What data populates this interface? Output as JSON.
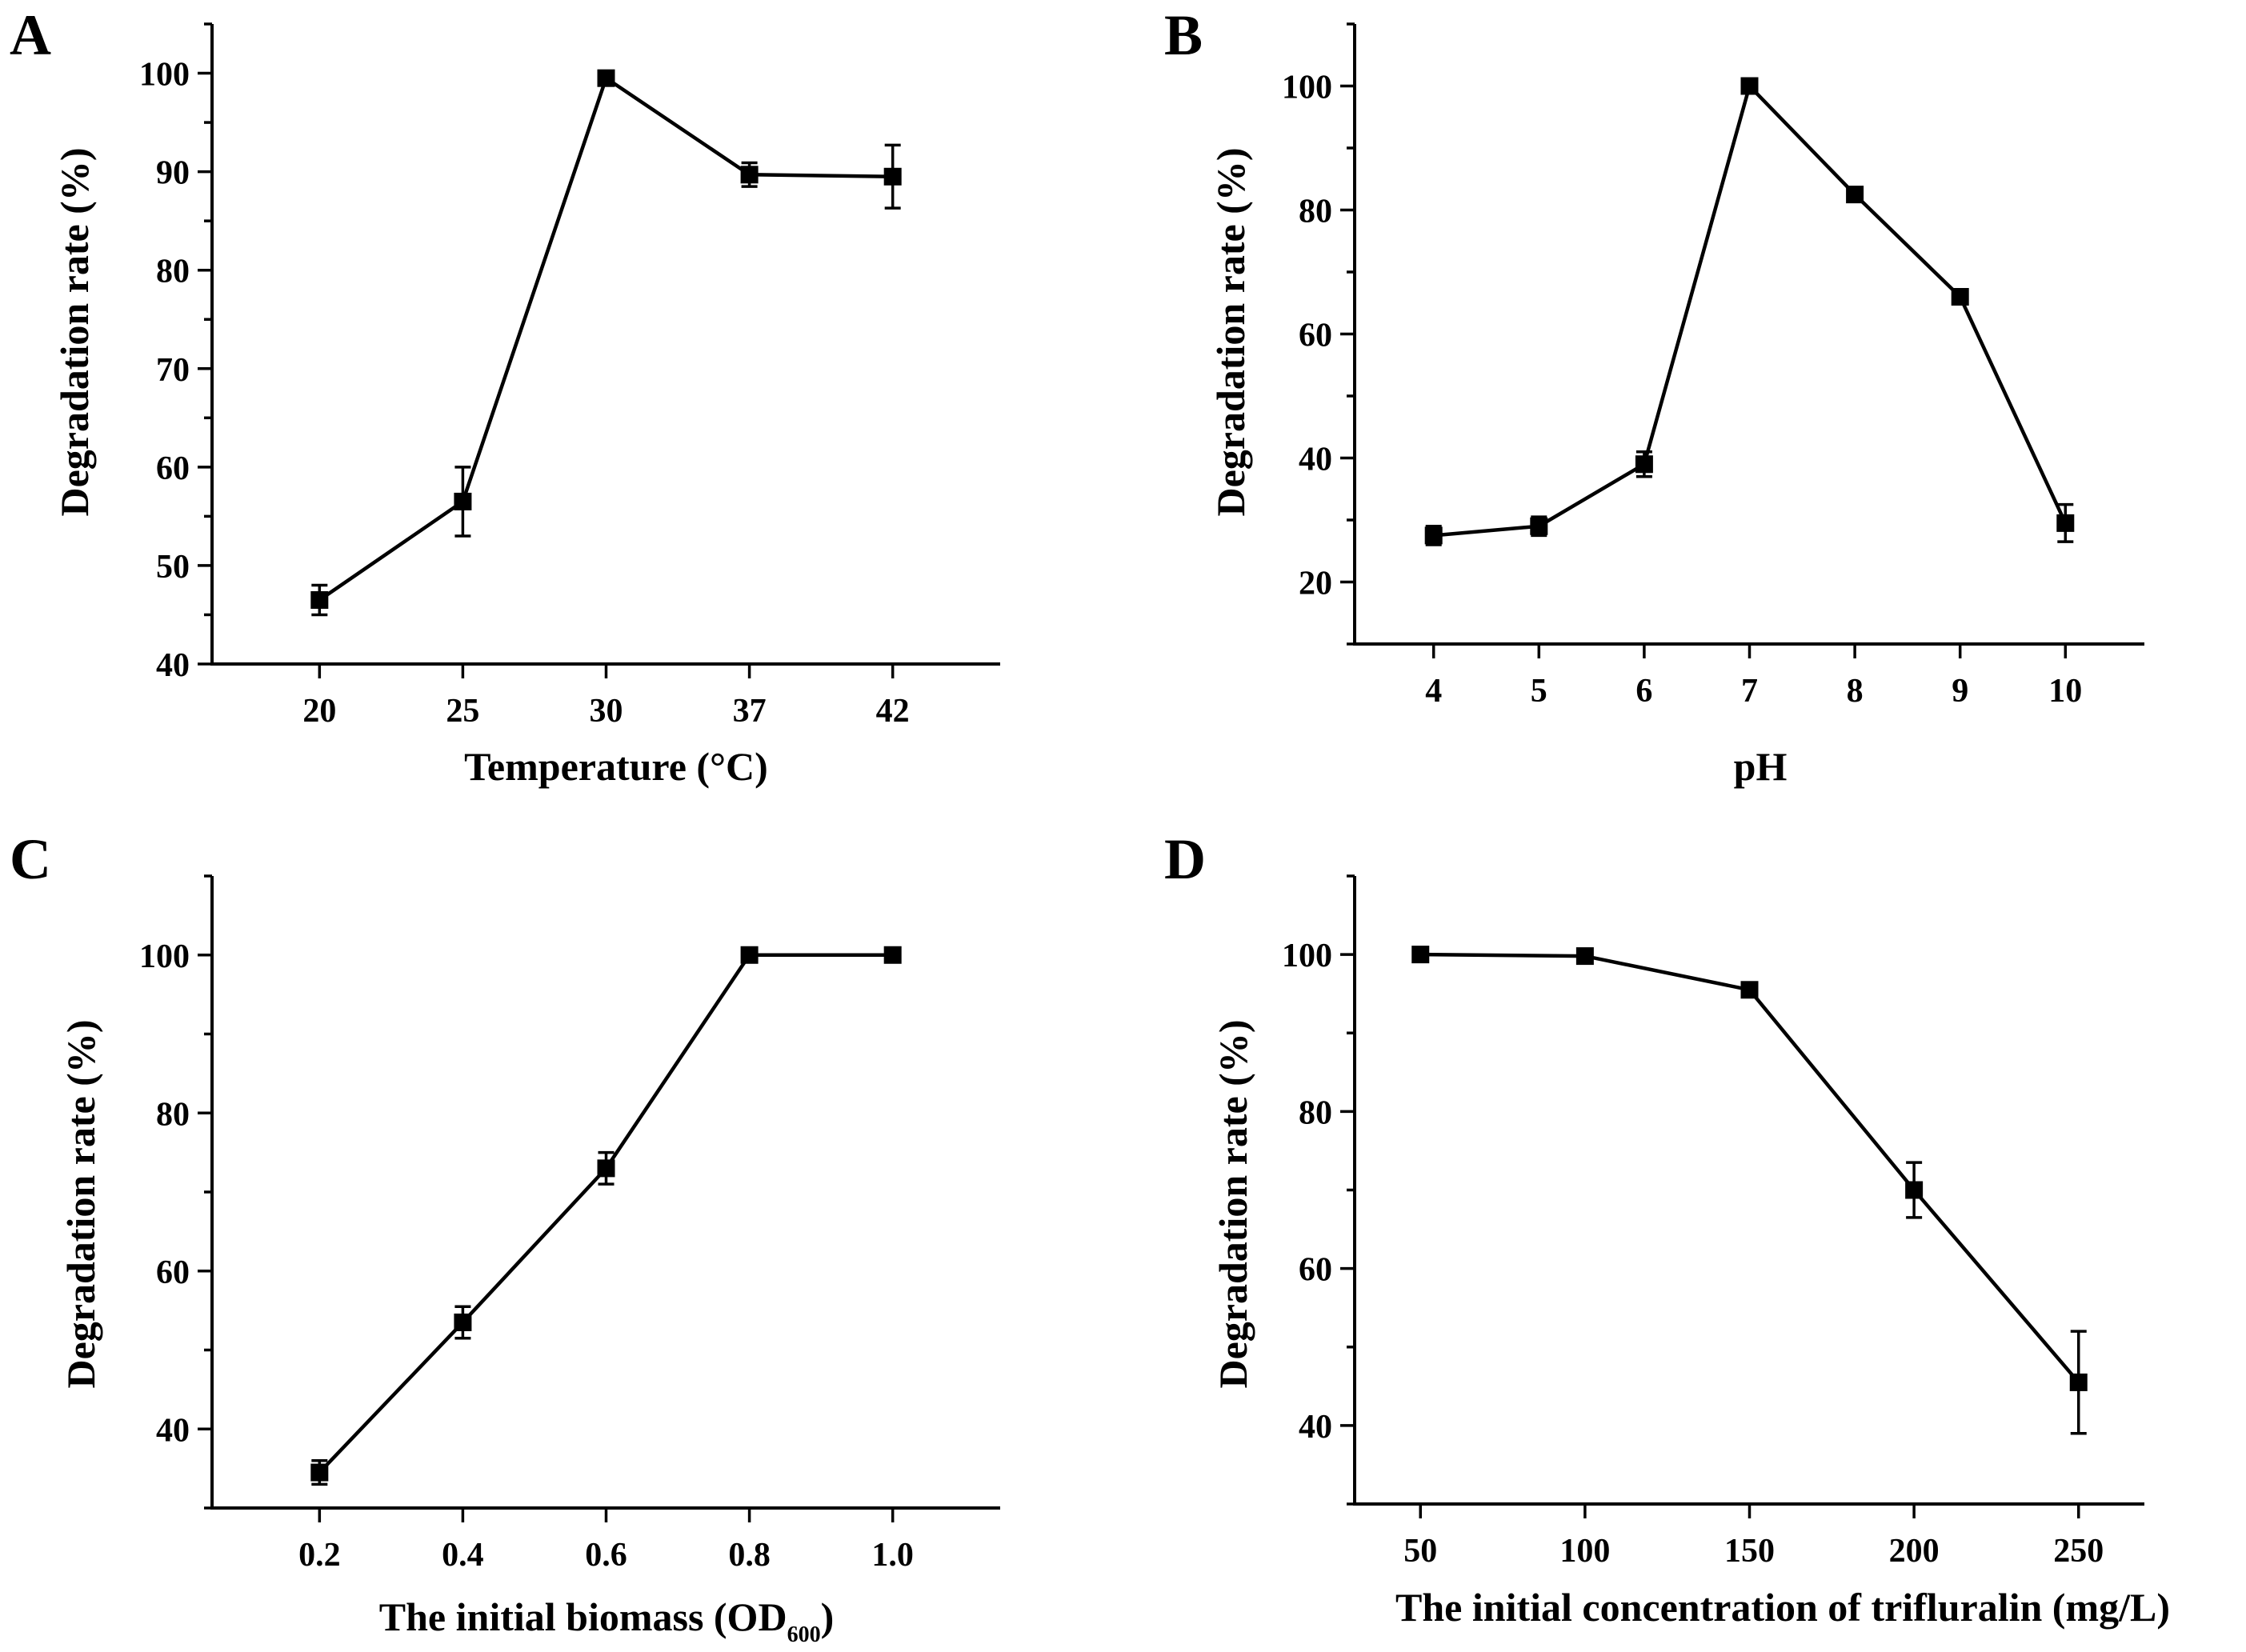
{
  "chart_data": [
    {
      "panel": "A",
      "type": "line",
      "xlabel": "Temperature (°C)",
      "ylabel": "Degradation rate (%)",
      "categories": [
        "20",
        "25",
        "30",
        "37",
        "42"
      ],
      "values": [
        46.5,
        56.5,
        99.5,
        89.7,
        89.5
      ],
      "errors": [
        1.5,
        3.5,
        0.5,
        1.2,
        3.2
      ],
      "ylim": [
        40,
        105
      ],
      "yticks": [
        40,
        50,
        60,
        70,
        80,
        90,
        100
      ]
    },
    {
      "panel": "B",
      "type": "line",
      "xlabel": "pH",
      "ylabel": "Degradation rate (%)",
      "categories": [
        "4",
        "5",
        "6",
        "7",
        "8",
        "9",
        "10"
      ],
      "values": [
        27.5,
        29.0,
        39.0,
        100.0,
        82.5,
        66.0,
        29.5
      ],
      "errors": [
        1.5,
        1.5,
        2.0,
        0.5,
        0.5,
        0.5,
        3.0
      ],
      "ylim": [
        10,
        110
      ],
      "yticks": [
        20,
        40,
        60,
        80,
        100
      ]
    },
    {
      "panel": "C",
      "type": "line",
      "xlabel": "The initial biomass (OD",
      "xlabel_sub": "600",
      "xlabel_tail": ")",
      "ylabel": "Degradation rate (%)",
      "categories": [
        "0.2",
        "0.4",
        "0.6",
        "0.8",
        "1.0"
      ],
      "values": [
        34.5,
        53.5,
        73.0,
        100.0,
        100.0
      ],
      "errors": [
        1.5,
        2.0,
        2.0,
        0.3,
        0.3
      ],
      "ylim": [
        30,
        110
      ],
      "yticks": [
        40,
        60,
        80,
        100
      ]
    },
    {
      "panel": "D",
      "type": "line",
      "xlabel": "The initial concentration of trifluralin (mg/L)",
      "ylabel": "Degradation rate (%)",
      "x": [
        50,
        100,
        150,
        200,
        250
      ],
      "xticks": [
        50,
        100,
        150,
        200,
        250
      ],
      "xlim": [
        30,
        270
      ],
      "values": [
        100.0,
        99.8,
        95.5,
        70.0,
        45.5
      ],
      "errors": [
        0.3,
        0.3,
        0.5,
        3.5,
        6.5
      ],
      "ylim": [
        30,
        110
      ],
      "yticks": [
        40,
        60,
        80,
        100
      ]
    }
  ]
}
